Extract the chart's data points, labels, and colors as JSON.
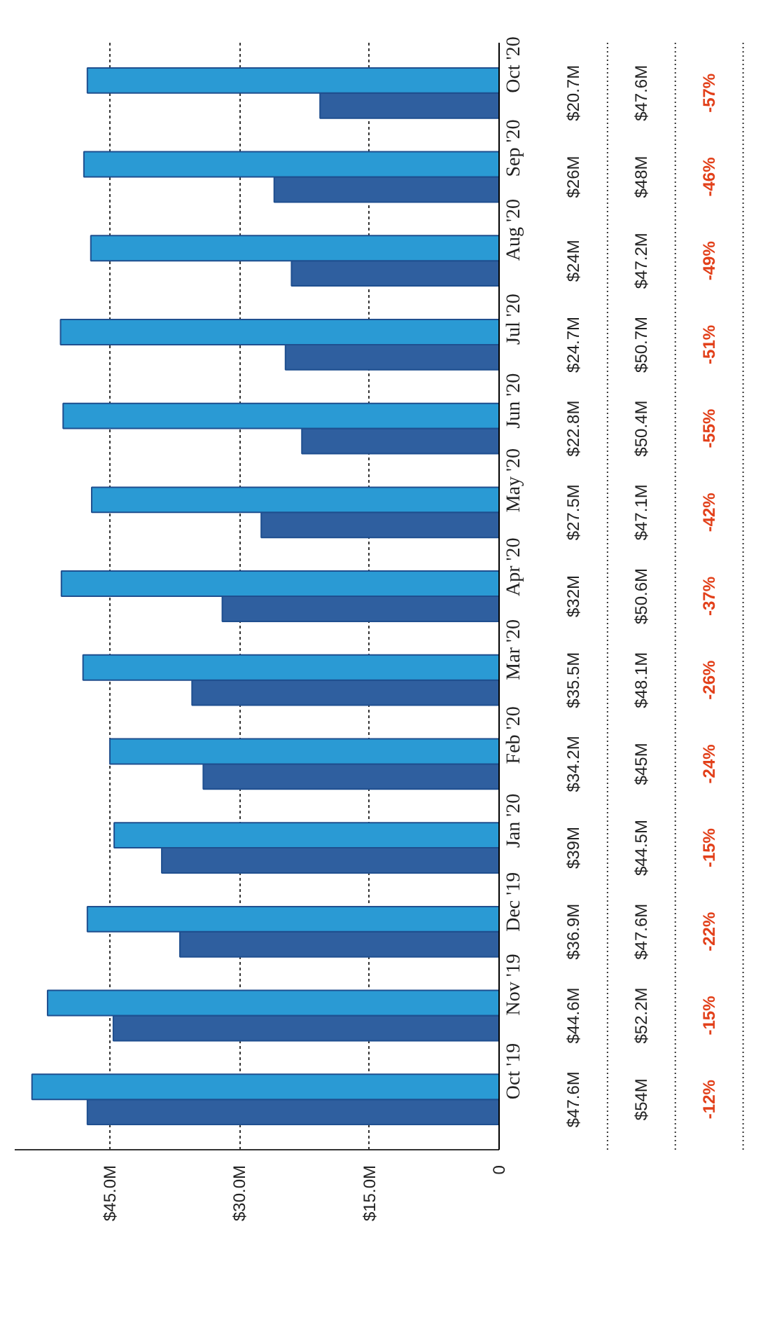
{
  "chart_data": {
    "type": "bar",
    "orientation": "horizontal",
    "categories": [
      "Oct '20",
      "Sep '20",
      "Aug '20",
      "Jul '20",
      "Jun '20",
      "May '20",
      "Apr '20",
      "Mar '20",
      "Feb '20",
      "Jan '20",
      "Dec '19",
      "Nov '19",
      "Oct '19"
    ],
    "series": [
      {
        "color": "#2f5f9f",
        "values": [
          20.7,
          26,
          24,
          24.7,
          22.8,
          27.5,
          32,
          35.5,
          34.2,
          39,
          36.9,
          44.6,
          47.6
        ],
        "value_labels": [
          "$20.7M",
          "$26M",
          "$24M",
          "$24.7M",
          "$22.8M",
          "$27.5M",
          "$32M",
          "$35.5M",
          "$34.2M",
          "$39M",
          "$36.9M",
          "$44.6M",
          "$47.6M"
        ]
      },
      {
        "color": "#2a9ad4",
        "values": [
          47.6,
          48,
          47.2,
          50.7,
          50.4,
          47.1,
          50.6,
          48.1,
          45,
          44.5,
          47.6,
          52.2,
          54
        ],
        "value_labels": [
          "$47.6M",
          "$48M",
          "$47.2M",
          "$50.7M",
          "$50.4M",
          "$47.1M",
          "$50.6M",
          "$48.1M",
          "$45M",
          "$44.5M",
          "$47.6M",
          "$52.2M",
          "$54M"
        ]
      }
    ],
    "xlim": [
      56,
      0
    ],
    "xticks": [
      {
        "value": 0,
        "label": "0"
      },
      {
        "value": 15,
        "label": "$15.0M"
      },
      {
        "value": 30,
        "label": "$30.0M"
      },
      {
        "value": 45,
        "label": "$45.0M"
      }
    ],
    "grid": "x",
    "annotations": [
      "-57%",
      "-46%",
      "-49%",
      "-51%",
      "-55%",
      "-42%",
      "-37%",
      "-26%",
      "-24%",
      "-15%",
      "-22%",
      "-15%",
      "-12%"
    ]
  }
}
